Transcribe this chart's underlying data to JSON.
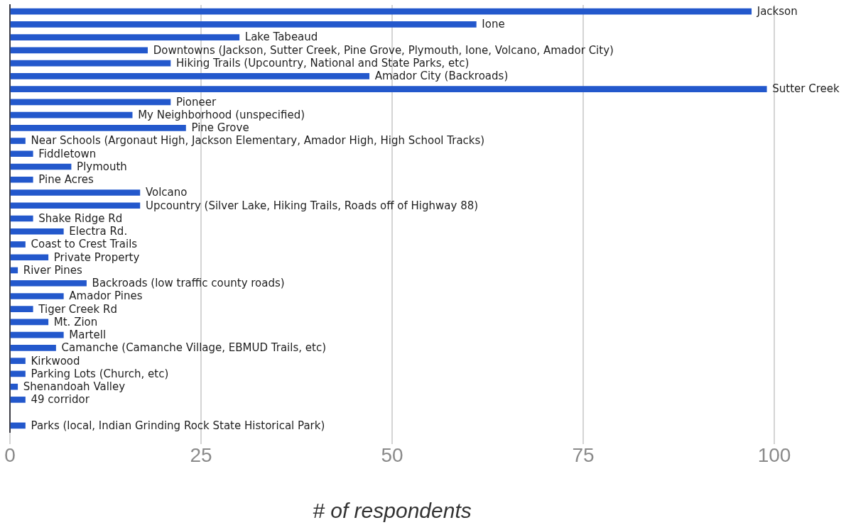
{
  "chart_data": {
    "type": "bar",
    "orientation": "horizontal",
    "xlabel": "# of respondents",
    "categories": [
      "Jackson",
      "Ione",
      "Lake Tabeaud",
      "Downtowns (Jackson, Sutter Creek, Pine Grove, Plymouth, Ione, Volcano, Amador City)",
      "Hiking Trails (Upcountry, National and State Parks, etc)",
      "Amador City (Backroads)",
      "Sutter Creek",
      "Pioneer",
      "My Neighborhood (unspecified)",
      "Pine Grove",
      "Near Schools (Argonaut High, Jackson Elementary, Amador High, High School Tracks)",
      "Fiddletown",
      "Plymouth",
      "Pine Acres",
      "Volcano",
      "Upcountry (Silver Lake, Hiking Trails, Roads off of Highway 88)",
      "Shake Ridge Rd",
      "Electra Rd.",
      "Coast to Crest Trails",
      "Private Property",
      "River Pines",
      "Backroads (low traffic county roads)",
      "Amador Pines",
      "Tiger Creek Rd",
      "Mt. Zion",
      "Martell",
      "Camanche (Camanche Village, EBMUD Trails, etc)",
      "Kirkwood",
      "Parking Lots (Church, etc)",
      "Shenandoah Valley",
      "49 corridor",
      null,
      "Parks (local, Indian Grinding Rock State Historical Park)"
    ],
    "values": [
      97,
      61,
      30,
      18,
      21,
      47,
      99,
      21,
      16,
      23,
      2,
      3,
      8,
      3,
      17,
      17,
      3,
      7,
      2,
      5,
      1,
      10,
      7,
      3,
      5,
      7,
      6,
      2,
      2,
      1,
      2,
      null,
      2
    ],
    "color": "#2358cc",
    "xlim": [
      0,
      100
    ],
    "xticks": [
      0,
      25,
      50,
      75,
      100
    ],
    "grid": "x"
  }
}
